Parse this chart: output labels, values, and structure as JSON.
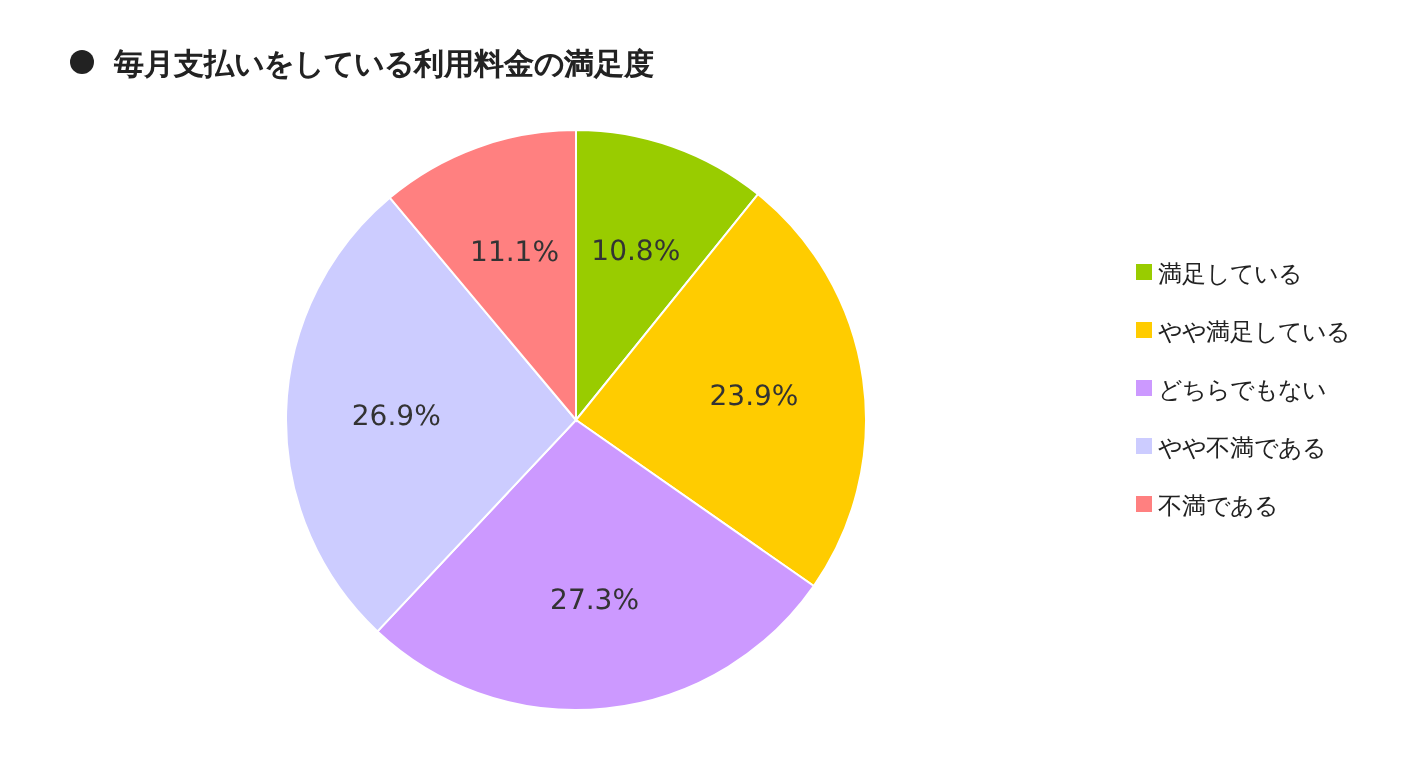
{
  "chart_data": {
    "type": "pie",
    "title": "毎月支払いをしている利用料金の満足度",
    "categories": [
      "満足している",
      "やや満足している",
      "どちらでもない",
      "やや不満である",
      "不満である"
    ],
    "values": [
      10.8,
      23.9,
      27.3,
      26.9,
      11.1
    ],
    "colors": [
      "#99cc00",
      "#ffcc00",
      "#cc99ff",
      "#ccccff",
      "#ff8080"
    ],
    "value_labels": [
      "10.8%",
      "23.9%",
      "27.3%",
      "26.9%",
      "11.1%"
    ],
    "legend": "right"
  }
}
